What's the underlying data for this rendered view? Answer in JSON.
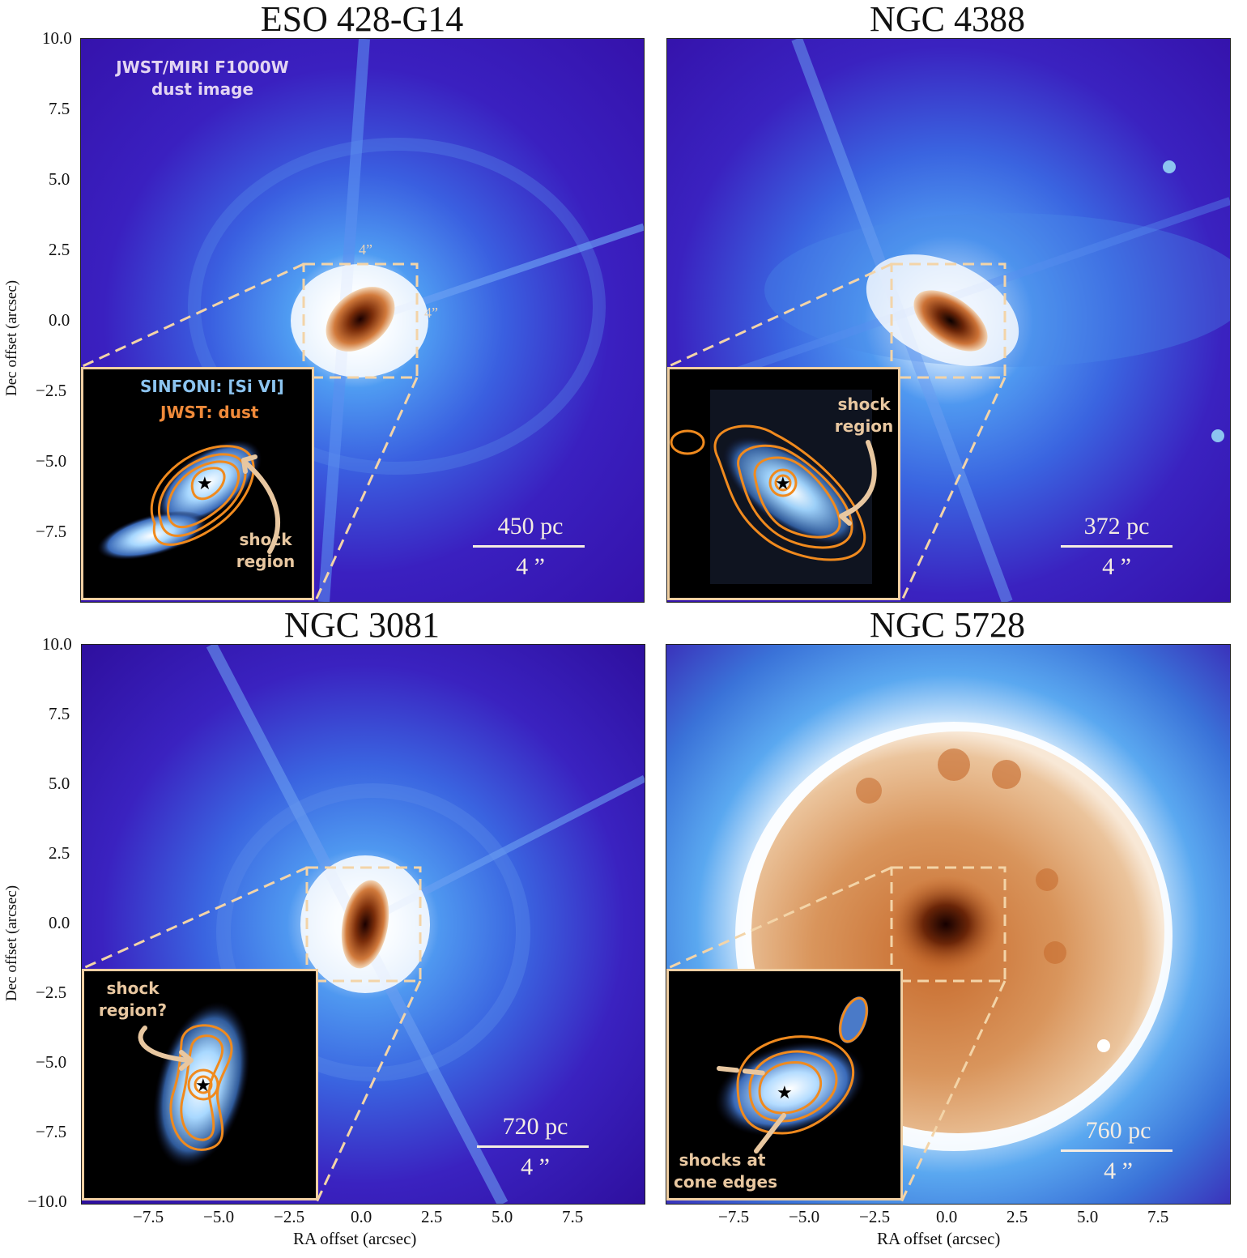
{
  "panels": [
    {
      "title": "ESO 428-G14",
      "scale_pc": "450 pc",
      "scale_arcsec": "4 ”",
      "box_top_label": "4”",
      "box_side_label": "4”",
      "image_label_line1": "JWST/MIRI F1000W",
      "image_label_line2": "dust image",
      "inset_label_1": "SINFONI: [Si VI]",
      "inset_label_2": "JWST:  dust",
      "inset_note_line1": "shock",
      "inset_note_line2": "region"
    },
    {
      "title": "NGC 4388",
      "scale_pc": "372 pc",
      "scale_arcsec": "4 ”",
      "inset_note_line1": "shock",
      "inset_note_line2": "region"
    },
    {
      "title": "NGC 3081",
      "scale_pc": "720 pc",
      "scale_arcsec": "4 ”",
      "inset_note_line1": "shock",
      "inset_note_line2": "region?"
    },
    {
      "title": "NGC 5728",
      "scale_pc": "760 pc",
      "scale_arcsec": "4 ”",
      "inset_note_line1": "shocks at",
      "inset_note_line2": "cone edges"
    }
  ],
  "axes": {
    "y_ticks": [
      "10.0",
      "7.5",
      "5.0",
      "2.5",
      "0.0",
      "−2.5",
      "−5.0",
      "−7.5"
    ],
    "y_ticks_bottom": [
      "10.0",
      "7.5",
      "5.0",
      "2.5",
      "0.0",
      "−2.5",
      "−5.0",
      "−7.5",
      "−10.0"
    ],
    "x_ticks": [
      "−7.5",
      "−5.0",
      "−2.5",
      "0.0",
      "2.5",
      "5.0",
      "7.5"
    ],
    "ylabel": "Dec offset (arcsec)",
    "xlabel": "RA offset (arcsec)"
  },
  "colors": {
    "background_purple": "#3a12b8",
    "glow_blue": "#3f8cf0",
    "core_orange": "#c8692a",
    "contour_orange": "#f08a1e",
    "box_cream": "#f3d4a8",
    "text_blue": "#8cc4f0",
    "text_orange": "#f08a3a",
    "text_cream": "#e8c7a0",
    "text_lavender": "#e2d4f2"
  }
}
